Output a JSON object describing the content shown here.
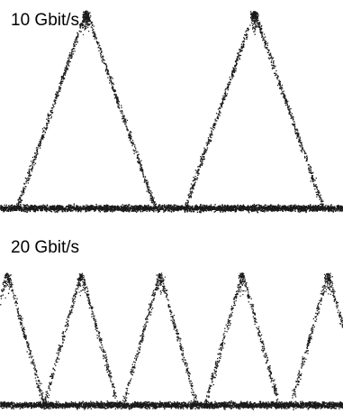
{
  "chart_data": [
    {
      "type": "scatter",
      "title": "10 Gbit/s",
      "xlabel": "",
      "ylabel": "",
      "grid": false,
      "legend": "none",
      "color": "#1a1a1a",
      "pulse_period_fraction": 0.48,
      "pulse_centers_fraction": [
        0.25,
        0.74
      ],
      "peak_level_fraction": 0.95,
      "baseline_level_fraction": 0.06
    },
    {
      "type": "scatter",
      "title": "20 Gbit/s",
      "xlabel": "",
      "ylabel": "",
      "grid": false,
      "legend": "none",
      "color": "#1a1a1a",
      "pulse_period_fraction": 0.24,
      "pulse_centers_fraction": [
        0.02,
        0.235,
        0.465,
        0.705,
        0.955
      ],
      "peak_level_fraction": 0.9,
      "baseline_level_fraction": 0.06
    }
  ]
}
